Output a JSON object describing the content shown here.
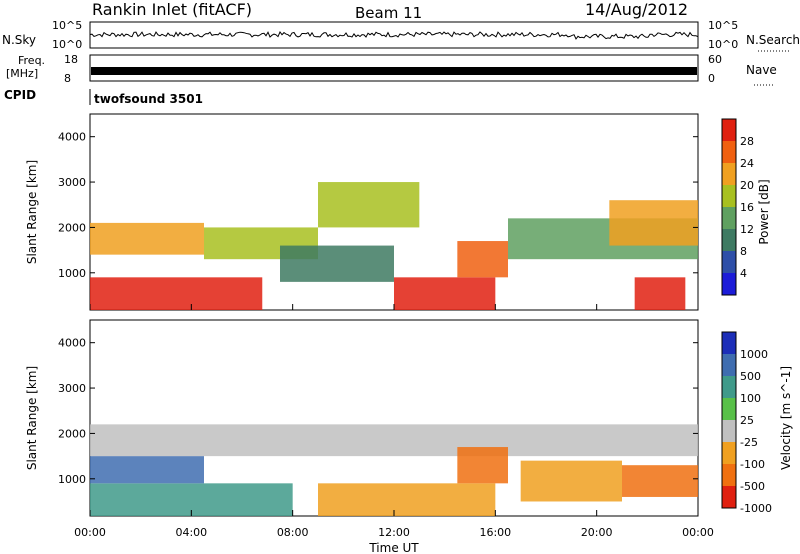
{
  "header": {
    "title": "Rankin Inlet (fitACF)",
    "beam": "Beam 11",
    "date": "14/Aug/2012"
  },
  "strips": {
    "nsky_label": "N.Sky",
    "nsky_ticks": [
      "10^5",
      "10^0"
    ],
    "nsearch_label": "N.Search",
    "nsearch_ticks": [
      "10^5",
      "10^0"
    ],
    "freq_label_1": "Freq.",
    "freq_label_2": "[MHz]",
    "freq_ticks": [
      "18",
      "8"
    ],
    "nave_label": "Nave",
    "nave_ticks": [
      "60",
      "0"
    ],
    "cpid_label": "CPID",
    "cpid_value": "twofsound 3501"
  },
  "chart_data": [
    {
      "type": "heatmap",
      "title": "",
      "xlabel": "",
      "ylabel": "Slant Range [km]",
      "xlim": [
        "00:00",
        "24:00"
      ],
      "ylim": [
        180,
        4500
      ],
      "yticks": [
        "1000",
        "2000",
        "3000",
        "4000"
      ],
      "colorbar": {
        "label": "Power [dB]",
        "ticks": [
          "4",
          "8",
          "12",
          "16",
          "20",
          "24",
          "28"
        ],
        "colors": [
          "#1c1cd8",
          "#2e4fa8",
          "#3e7a62",
          "#5fa060",
          "#a8c020",
          "#f0a020",
          "#f06010",
          "#e02010"
        ]
      },
      "regions": [
        {
          "t_start": 0.0,
          "t_end": 6.8,
          "range_start": 180,
          "range_end": 900,
          "value": 28
        },
        {
          "t_start": 0.0,
          "t_end": 4.5,
          "range_start": 1400,
          "range_end": 2100,
          "value": 20
        },
        {
          "t_start": 4.5,
          "t_end": 9.0,
          "range_start": 1300,
          "range_end": 2000,
          "value": 16
        },
        {
          "t_start": 7.5,
          "t_end": 12.0,
          "range_start": 800,
          "range_end": 1600,
          "value": 8
        },
        {
          "t_start": 9.0,
          "t_end": 13.0,
          "range_start": 2000,
          "range_end": 3000,
          "value": 16
        },
        {
          "t_start": 12.0,
          "t_end": 16.0,
          "range_start": 180,
          "range_end": 900,
          "value": 28
        },
        {
          "t_start": 14.5,
          "t_end": 16.5,
          "range_start": 900,
          "range_end": 1700,
          "value": 24
        },
        {
          "t_start": 16.5,
          "t_end": 24.0,
          "range_start": 1300,
          "range_end": 2200,
          "value": 12
        },
        {
          "t_start": 20.5,
          "t_end": 24.0,
          "range_start": 1600,
          "range_end": 2600,
          "value": 20
        },
        {
          "t_start": 21.5,
          "t_end": 23.5,
          "range_start": 180,
          "range_end": 900,
          "value": 28
        }
      ]
    },
    {
      "type": "heatmap",
      "title": "",
      "xlabel": "Time UT",
      "ylabel": "Slant Range [km]",
      "xlim": [
        "00:00",
        "24:00"
      ],
      "ylim": [
        180,
        4500
      ],
      "xticks": [
        "00:00",
        "04:00",
        "08:00",
        "12:00",
        "16:00",
        "20:00",
        "00:00"
      ],
      "yticks": [
        "1000",
        "2000",
        "3000",
        "4000"
      ],
      "colorbar": {
        "label": "Velocity [m s^-1]",
        "ticks": [
          "1000",
          "500",
          "100",
          "25",
          "-25",
          "-100",
          "-500",
          "-1000"
        ],
        "colors": [
          "#1c2eb8",
          "#3f6db0",
          "#3f9a8a",
          "#58c048",
          "#c0c0c0",
          "#f0a020",
          "#f07010",
          "#e02010"
        ]
      },
      "regions": [
        {
          "t_start": 0.0,
          "t_end": 8.0,
          "range_start": 180,
          "range_end": 900,
          "value": 100
        },
        {
          "t_start": 0.0,
          "t_end": 4.5,
          "range_start": 900,
          "range_end": 1500,
          "value": 500
        },
        {
          "t_start": 0.0,
          "t_end": 24.0,
          "range_start": 1500,
          "range_end": 2200,
          "value": 0
        },
        {
          "t_start": 9.0,
          "t_end": 16.0,
          "range_start": 180,
          "range_end": 900,
          "value": -100
        },
        {
          "t_start": 14.5,
          "t_end": 16.5,
          "range_start": 900,
          "range_end": 1700,
          "value": -500
        },
        {
          "t_start": 17.0,
          "t_end": 21.0,
          "range_start": 500,
          "range_end": 1400,
          "value": -100
        },
        {
          "t_start": 21.0,
          "t_end": 24.0,
          "range_start": 600,
          "range_end": 1300,
          "value": -500
        }
      ]
    }
  ]
}
